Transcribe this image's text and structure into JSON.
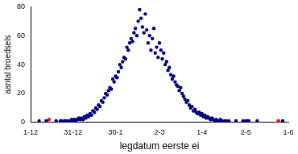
{
  "chart_data": {
    "type": "scatter",
    "x_label": "legdatum eerste ei",
    "y_label": "aantal broedsels",
    "xlim": [
      0,
      182
    ],
    "xticks": [
      {
        "value": 0,
        "label": "1-12"
      },
      {
        "value": 30,
        "label": "31-12"
      },
      {
        "value": 60,
        "label": "30-1"
      },
      {
        "value": 91,
        "label": "2-3"
      },
      {
        "value": 121,
        "label": "1-4"
      },
      {
        "value": 152,
        "label": "2-5"
      },
      {
        "value": 182,
        "label": "1-6"
      }
    ],
    "ylim": [
      0,
      80
    ],
    "yticks": [
      0,
      20,
      40,
      60,
      80
    ],
    "grid": false,
    "series": [
      {
        "color": "#000080",
        "marker": "circle",
        "x": [
          6,
          11,
          18,
          21,
          22,
          23,
          24,
          25,
          26,
          27,
          28,
          29,
          30,
          31,
          32,
          33,
          34,
          35,
          36,
          37,
          38,
          39,
          40,
          41,
          42,
          43,
          44,
          45,
          46,
          47,
          48,
          49,
          50,
          51,
          52,
          53,
          54,
          55,
          56,
          57,
          58,
          59,
          60,
          61,
          62,
          63,
          64,
          65,
          66,
          67,
          68,
          69,
          70,
          71,
          72,
          73,
          74,
          75,
          76,
          77,
          78,
          79,
          80,
          81,
          82,
          83,
          84,
          85,
          86,
          87,
          88,
          89,
          90,
          91,
          92,
          93,
          94,
          95,
          96,
          97,
          98,
          99,
          100,
          101,
          102,
          103,
          104,
          105,
          106,
          107,
          108,
          109,
          110,
          111,
          112,
          113,
          114,
          115,
          116,
          117,
          118,
          119,
          120,
          121,
          122,
          123,
          124,
          125,
          126,
          127,
          128,
          129,
          130,
          131,
          132,
          133,
          134,
          135,
          136,
          137,
          138,
          139,
          140,
          145,
          150,
          152,
          153,
          154,
          160,
          178
        ],
        "values": [
          1,
          1,
          1,
          1,
          1,
          0,
          1,
          1,
          0,
          1,
          1,
          2,
          1,
          2,
          1,
          2,
          3,
          2,
          3,
          2,
          4,
          3,
          5,
          4,
          6,
          5,
          8,
          7,
          10,
          9,
          12,
          11,
          15,
          14,
          17,
          20,
          19,
          22,
          24,
          23,
          30,
          28,
          32,
          31,
          35,
          40,
          38,
          42,
          45,
          44,
          52,
          50,
          55,
          58,
          56,
          62,
          65,
          60,
          70,
          78,
          72,
          66,
          62,
          75,
          64,
          55,
          60,
          50,
          58,
          65,
          48,
          52,
          45,
          55,
          50,
          44,
          48,
          40,
          42,
          36,
          38,
          33,
          30,
          32,
          28,
          26,
          25,
          22,
          24,
          20,
          18,
          16,
          14,
          15,
          12,
          10,
          11,
          8,
          9,
          7,
          6,
          7,
          5,
          6,
          4,
          5,
          3,
          4,
          3,
          2,
          3,
          2,
          1,
          2,
          1,
          1,
          2,
          1,
          0,
          1,
          1,
          0,
          1,
          1,
          1,
          1,
          1,
          1,
          1,
          1
        ]
      },
      {
        "color": "#ff0000",
        "marker": "circle",
        "x": [
          13,
          175
        ],
        "values": [
          2,
          1
        ]
      }
    ]
  }
}
